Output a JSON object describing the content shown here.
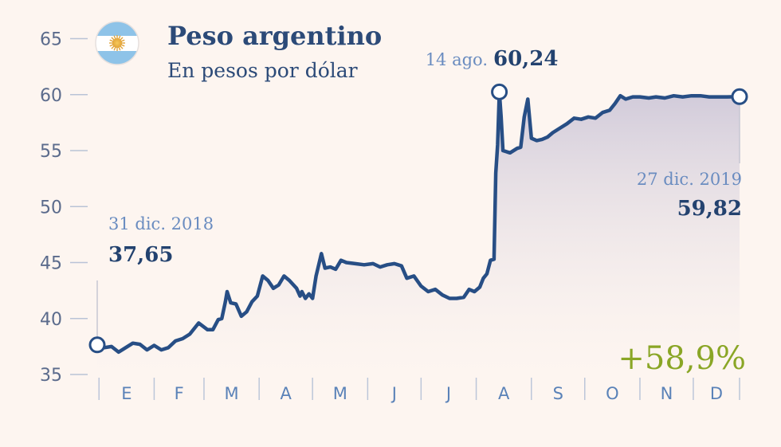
{
  "chart_data": {
    "type": "line",
    "title": "Peso argentino",
    "subtitle": "En pesos por dólar",
    "ylim": [
      35,
      65
    ],
    "yticks": [
      35,
      40,
      45,
      50,
      55,
      60,
      65
    ],
    "months": [
      "E",
      "F",
      "M",
      "A",
      "M",
      "J",
      "J",
      "A",
      "S",
      "O",
      "N",
      "D"
    ],
    "x_start": "2018-12-31",
    "x_end": "2019-12-27",
    "change_label": "+58,9%",
    "annotations": [
      {
        "date_label": "31 dic. 2018",
        "value_label": "37,65",
        "date": "2018-12-31",
        "value": 37.65
      },
      {
        "date_label": "14 ago.",
        "value_label": "60,24",
        "date": "2019-08-14",
        "value": 60.24
      },
      {
        "date_label": "27 dic. 2019",
        "value_label": "59,82",
        "date": "2019-12-27",
        "value": 59.82
      }
    ],
    "series": [
      {
        "color": "#274e85",
        "points": [
          [
            "2018-12-31",
            37.65
          ],
          [
            "2019-01-04",
            37.4
          ],
          [
            "2019-01-08",
            37.5
          ],
          [
            "2019-01-12",
            37.0
          ],
          [
            "2019-01-16",
            37.4
          ],
          [
            "2019-01-20",
            37.8
          ],
          [
            "2019-01-24",
            37.7
          ],
          [
            "2019-01-28",
            37.2
          ],
          [
            "2019-02-01",
            37.6
          ],
          [
            "2019-02-05",
            37.2
          ],
          [
            "2019-02-09",
            37.4
          ],
          [
            "2019-02-13",
            38.0
          ],
          [
            "2019-02-17",
            38.2
          ],
          [
            "2019-02-21",
            38.6
          ],
          [
            "2019-02-26",
            39.6
          ],
          [
            "2019-03-03",
            39.0
          ],
          [
            "2019-03-06",
            39.0
          ],
          [
            "2019-03-09",
            39.9
          ],
          [
            "2019-03-11",
            40.0
          ],
          [
            "2019-03-13",
            41.5
          ],
          [
            "2019-03-14",
            42.4
          ],
          [
            "2019-03-16",
            41.4
          ],
          [
            "2019-03-19",
            41.3
          ],
          [
            "2019-03-22",
            40.2
          ],
          [
            "2019-03-25",
            40.6
          ],
          [
            "2019-03-28",
            41.5
          ],
          [
            "2019-03-31",
            42.0
          ],
          [
            "2019-04-03",
            43.8
          ],
          [
            "2019-04-06",
            43.4
          ],
          [
            "2019-04-09",
            42.7
          ],
          [
            "2019-04-12",
            43.0
          ],
          [
            "2019-04-15",
            43.8
          ],
          [
            "2019-04-18",
            43.4
          ],
          [
            "2019-04-22",
            42.7
          ],
          [
            "2019-04-24",
            42.0
          ],
          [
            "2019-04-25",
            42.4
          ],
          [
            "2019-04-27",
            41.8
          ],
          [
            "2019-04-29",
            42.2
          ],
          [
            "2019-05-01",
            41.8
          ],
          [
            "2019-05-03",
            43.8
          ],
          [
            "2019-05-06",
            45.8
          ],
          [
            "2019-05-08",
            44.5
          ],
          [
            "2019-05-11",
            44.6
          ],
          [
            "2019-05-14",
            44.4
          ],
          [
            "2019-05-17",
            45.2
          ],
          [
            "2019-05-20",
            45.0
          ],
          [
            "2019-05-25",
            44.9
          ],
          [
            "2019-05-30",
            44.8
          ],
          [
            "2019-06-04",
            44.9
          ],
          [
            "2019-06-08",
            44.6
          ],
          [
            "2019-06-12",
            44.8
          ],
          [
            "2019-06-16",
            44.9
          ],
          [
            "2019-06-20",
            44.7
          ],
          [
            "2019-06-23",
            43.6
          ],
          [
            "2019-06-27",
            43.8
          ],
          [
            "2019-07-01",
            42.9
          ],
          [
            "2019-07-05",
            42.4
          ],
          [
            "2019-07-09",
            42.6
          ],
          [
            "2019-07-13",
            42.1
          ],
          [
            "2019-07-17",
            41.8
          ],
          [
            "2019-07-21",
            41.8
          ],
          [
            "2019-07-25",
            41.9
          ],
          [
            "2019-07-28",
            42.6
          ],
          [
            "2019-07-31",
            42.4
          ],
          [
            "2019-08-03",
            42.8
          ],
          [
            "2019-08-05",
            43.6
          ],
          [
            "2019-08-07",
            44.0
          ],
          [
            "2019-08-09",
            45.2
          ],
          [
            "2019-08-11",
            45.3
          ],
          [
            "2019-08-12",
            53.0
          ],
          [
            "2019-08-13",
            55.5
          ],
          [
            "2019-08-14",
            60.24
          ],
          [
            "2019-08-15",
            58.0
          ],
          [
            "2019-08-16",
            55.0
          ],
          [
            "2019-08-20",
            54.8
          ],
          [
            "2019-08-24",
            55.2
          ],
          [
            "2019-08-26",
            55.3
          ],
          [
            "2019-08-28",
            58.0
          ],
          [
            "2019-08-30",
            59.6
          ],
          [
            "2019-09-01",
            56.1
          ],
          [
            "2019-09-04",
            55.9
          ],
          [
            "2019-09-07",
            56.0
          ],
          [
            "2019-09-10",
            56.2
          ],
          [
            "2019-09-13",
            56.6
          ],
          [
            "2019-09-17",
            57.0
          ],
          [
            "2019-09-21",
            57.4
          ],
          [
            "2019-09-25",
            57.9
          ],
          [
            "2019-09-29",
            57.8
          ],
          [
            "2019-10-03",
            58.0
          ],
          [
            "2019-10-07",
            57.9
          ],
          [
            "2019-10-11",
            58.4
          ],
          [
            "2019-10-15",
            58.6
          ],
          [
            "2019-10-18",
            59.2
          ],
          [
            "2019-10-21",
            59.9
          ],
          [
            "2019-10-24",
            59.6
          ],
          [
            "2019-10-28",
            59.8
          ],
          [
            "2019-11-01",
            59.8
          ],
          [
            "2019-11-06",
            59.7
          ],
          [
            "2019-11-10",
            59.8
          ],
          [
            "2019-11-15",
            59.7
          ],
          [
            "2019-11-20",
            59.9
          ],
          [
            "2019-11-25",
            59.8
          ],
          [
            "2019-11-30",
            59.9
          ],
          [
            "2019-12-05",
            59.9
          ],
          [
            "2019-12-10",
            59.8
          ],
          [
            "2019-12-15",
            59.8
          ],
          [
            "2019-12-20",
            59.8
          ],
          [
            "2019-12-27",
            59.82
          ]
        ]
      }
    ]
  }
}
